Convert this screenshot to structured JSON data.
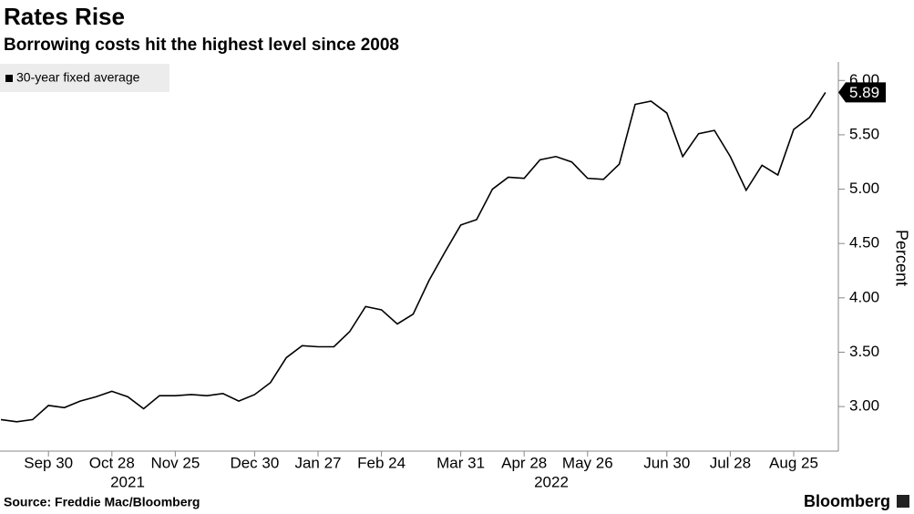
{
  "chart_data": {
    "type": "line",
    "title": "Rates Rise",
    "subtitle": "Borrowing costs hit the highest level since 2008",
    "source": "Source: Freddie Mac/Bloomberg",
    "brand": "Bloomberg",
    "ylabel": "Percent",
    "categories": [
      null,
      null,
      null,
      "Sep 30",
      null,
      null,
      null,
      "Oct 28",
      null,
      null,
      null,
      "Nov 25",
      null,
      null,
      null,
      null,
      "Dec 30",
      null,
      null,
      null,
      "Jan 27",
      null,
      null,
      null,
      "Feb 24",
      null,
      null,
      null,
      null,
      "Mar 31",
      null,
      null,
      null,
      "Apr 28",
      null,
      null,
      null,
      "May 26",
      null,
      null,
      null,
      null,
      "Jun 30",
      null,
      null,
      null,
      "Jul 28",
      null,
      null,
      null,
      "Aug 25",
      null,
      null
    ],
    "year_labels": [
      "2021",
      "2022"
    ],
    "series": [
      {
        "name": "30-year fixed average",
        "color": "#000000",
        "values": [
          2.88,
          2.86,
          2.88,
          3.01,
          2.99,
          3.05,
          3.09,
          3.14,
          3.09,
          2.98,
          3.1,
          3.1,
          3.11,
          3.1,
          3.12,
          3.05,
          3.11,
          3.22,
          3.45,
          3.56,
          3.55,
          3.55,
          3.69,
          3.92,
          3.89,
          3.76,
          3.85,
          4.16,
          4.42,
          4.67,
          4.72,
          5.0,
          5.11,
          5.1,
          5.27,
          5.3,
          5.25,
          5.1,
          5.09,
          5.23,
          5.78,
          5.81,
          5.7,
          5.3,
          5.51,
          5.54,
          5.3,
          4.99,
          5.22,
          5.13,
          5.55,
          5.66,
          5.89
        ]
      }
    ],
    "ylim": [
      2.59,
      6.17
    ],
    "yticks": [
      {
        "value": 3,
        "label": "3.00"
      },
      {
        "value": 3.5,
        "label": "3.50"
      },
      {
        "value": 4,
        "label": "4.00"
      },
      {
        "value": 4.5,
        "label": "4.50"
      },
      {
        "value": 5,
        "label": "5.00"
      },
      {
        "value": 5.5,
        "label": "5.50"
      },
      {
        "value": 6,
        "label": "6.00"
      }
    ]
  }
}
